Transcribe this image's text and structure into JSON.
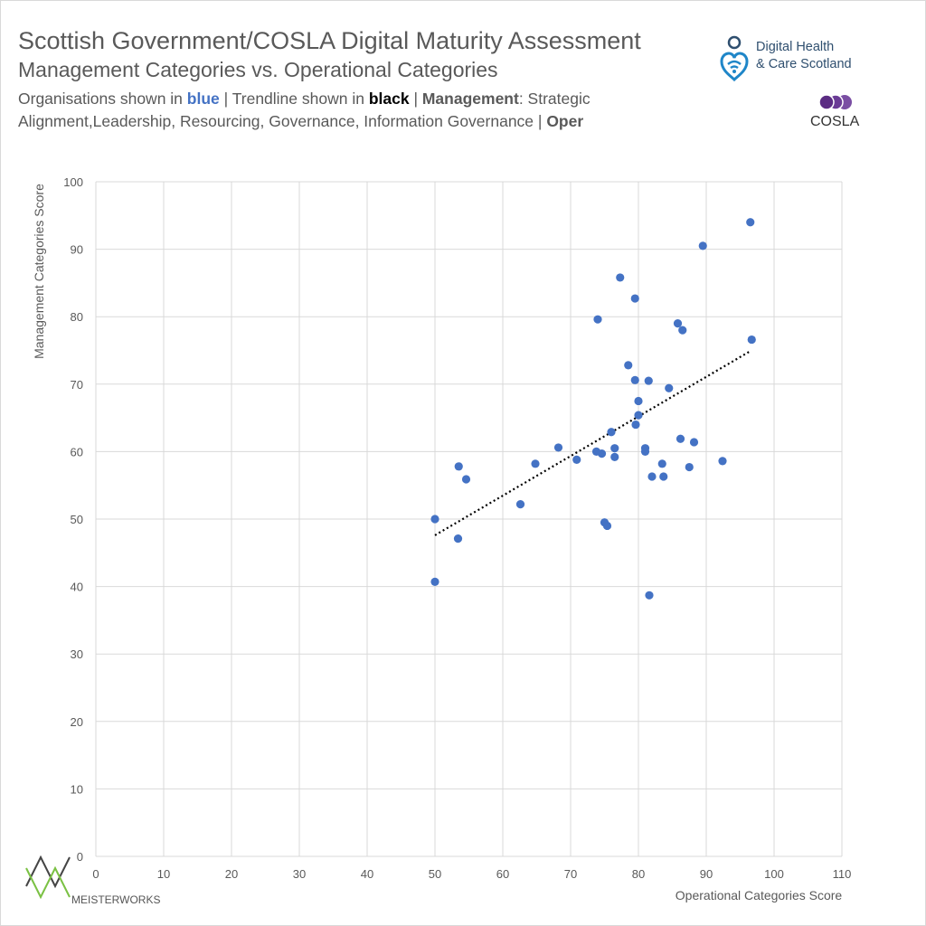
{
  "header": {
    "title": "Scottish Government/COSLA Digital Maturity Assessment",
    "subtitle": "Management Categories vs. Operational Categories",
    "note": {
      "part1": "Organisations shown in ",
      "blue_word": "blue",
      "part2": " | Trendline shown in ",
      "black_word": "black",
      "part3": " | ",
      "management_label": "Management",
      "part4": ": Strategic Alignment,Leadership, Resourcing, Governance, Information Governance | ",
      "oper_label": "Oper"
    }
  },
  "logos": {
    "dhcs_line1": "Digital Health",
    "dhcs_line2": "& Care Scotland",
    "cosla": "COSLA",
    "meisterworks": "MEISTERWORKS"
  },
  "colors": {
    "points": "#4472c4",
    "trendline": "#000000",
    "grid": "#d9d9d9",
    "cosla_purple": "#5b2c83",
    "mw_dark": "#444444",
    "mw_green": "#7ac143"
  },
  "chart_data": {
    "type": "scatter",
    "title": "Management Categories vs. Operational Categories",
    "xlabel": "Operational Categories Score",
    "ylabel": "Management Categories Score",
    "xlim": [
      0,
      110
    ],
    "ylim": [
      0,
      100
    ],
    "xticks": [
      0,
      10,
      20,
      30,
      40,
      50,
      60,
      70,
      80,
      90,
      100,
      110
    ],
    "yticks": [
      0,
      10,
      20,
      30,
      40,
      50,
      60,
      70,
      80,
      90,
      100
    ],
    "grid": true,
    "series": [
      {
        "name": "Organisations",
        "points": [
          [
            96.5,
            94.0
          ],
          [
            89.5,
            90.5
          ],
          [
            77.3,
            85.8
          ],
          [
            79.5,
            82.7
          ],
          [
            74.0,
            79.6
          ],
          [
            85.8,
            79.0
          ],
          [
            86.5,
            78.0
          ],
          [
            96.7,
            76.6
          ],
          [
            78.5,
            72.8
          ],
          [
            79.5,
            70.6
          ],
          [
            81.5,
            70.5
          ],
          [
            84.5,
            69.4
          ],
          [
            80.0,
            67.5
          ],
          [
            80.0,
            65.4
          ],
          [
            79.6,
            64.0
          ],
          [
            76.0,
            62.9
          ],
          [
            86.2,
            61.9
          ],
          [
            88.2,
            61.4
          ],
          [
            68.2,
            60.6
          ],
          [
            76.5,
            60.5
          ],
          [
            81.0,
            60.5
          ],
          [
            73.8,
            60.0
          ],
          [
            81.0,
            60.0
          ],
          [
            74.6,
            59.7
          ],
          [
            76.5,
            59.2
          ],
          [
            70.9,
            58.8
          ],
          [
            92.4,
            58.6
          ],
          [
            64.8,
            58.2
          ],
          [
            83.5,
            58.2
          ],
          [
            53.5,
            57.8
          ],
          [
            87.5,
            57.7
          ],
          [
            82.0,
            56.3
          ],
          [
            83.7,
            56.3
          ],
          [
            54.6,
            55.9
          ],
          [
            62.6,
            52.2
          ],
          [
            50.0,
            50.0
          ],
          [
            75.0,
            49.5
          ],
          [
            75.4,
            49.0
          ],
          [
            53.4,
            47.1
          ],
          [
            50.0,
            40.7
          ],
          [
            81.6,
            38.7
          ]
        ]
      }
    ],
    "trendline": {
      "x_start": 50.0,
      "y_start": 47.6,
      "x_end": 96.5,
      "y_end": 74.9,
      "style": "dotted"
    }
  }
}
